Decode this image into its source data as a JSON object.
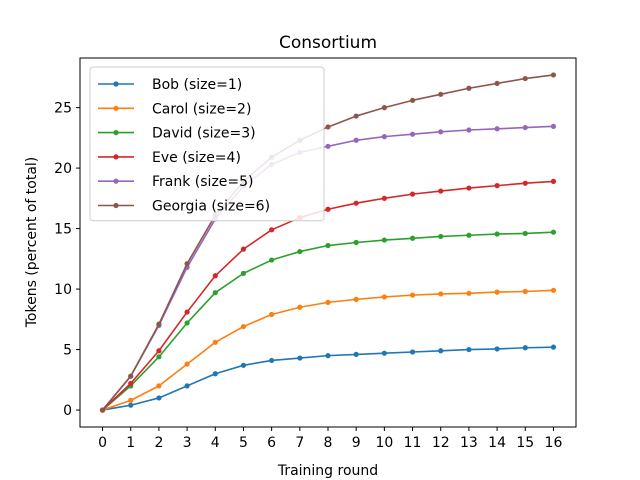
{
  "chart_data": {
    "type": "line",
    "title": "Consortium",
    "xlabel": "Training round",
    "ylabel": "Tokens (percent of total)",
    "x": [
      0,
      1,
      2,
      3,
      4,
      5,
      6,
      7,
      8,
      9,
      10,
      11,
      12,
      13,
      14,
      15,
      16
    ],
    "xlim": [
      -0.8,
      16.8
    ],
    "ylim": [
      -1.4,
      29.1
    ],
    "yticks": [
      0,
      5,
      10,
      15,
      20,
      25
    ],
    "grid": false,
    "legend_position": "upper-left",
    "series": [
      {
        "name": "Bob (size=1)",
        "color": "#1f77b4",
        "values": [
          0,
          0.4,
          1.0,
          2.0,
          3.0,
          3.7,
          4.1,
          4.3,
          4.5,
          4.6,
          4.7,
          4.8,
          4.9,
          5.0,
          5.05,
          5.15,
          5.2
        ]
      },
      {
        "name": "Carol (size=2)",
        "color": "#ff7f0e",
        "values": [
          0,
          0.8,
          2.0,
          3.8,
          5.6,
          6.9,
          7.9,
          8.5,
          8.9,
          9.15,
          9.35,
          9.5,
          9.6,
          9.65,
          9.75,
          9.8,
          9.9
        ]
      },
      {
        "name": "David (size=3)",
        "color": "#2ca02c",
        "values": [
          0,
          2.0,
          4.4,
          7.2,
          9.7,
          11.3,
          12.4,
          13.1,
          13.6,
          13.85,
          14.05,
          14.2,
          14.35,
          14.45,
          14.55,
          14.6,
          14.7
        ]
      },
      {
        "name": "Eve (size=4)",
        "color": "#d62728",
        "values": [
          0,
          2.2,
          4.9,
          8.1,
          11.1,
          13.3,
          14.9,
          15.9,
          16.6,
          17.1,
          17.5,
          17.85,
          18.1,
          18.35,
          18.55,
          18.75,
          18.9
        ]
      },
      {
        "name": "Frank (size=5)",
        "color": "#9467bd",
        "values": [
          0,
          2.8,
          7.0,
          11.8,
          15.8,
          18.5,
          20.3,
          21.3,
          21.8,
          22.3,
          22.6,
          22.8,
          23.0,
          23.15,
          23.25,
          23.35,
          23.45
        ]
      },
      {
        "name": "Georgia (size=6)",
        "color": "#8c564b",
        "values": [
          0,
          2.8,
          7.1,
          12.1,
          16.1,
          18.9,
          20.9,
          22.3,
          23.4,
          24.3,
          25.0,
          25.6,
          26.1,
          26.6,
          27.0,
          27.4,
          27.7
        ]
      }
    ]
  }
}
